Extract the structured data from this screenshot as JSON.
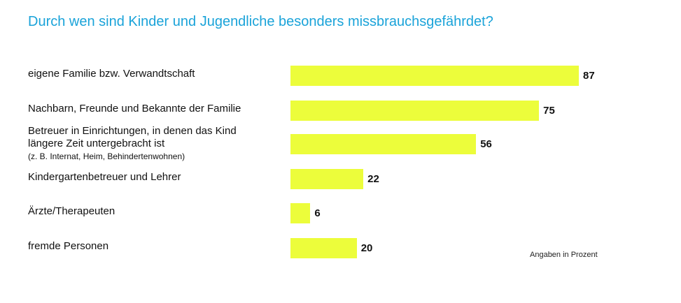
{
  "chart_data": {
    "type": "bar",
    "orientation": "horizontal",
    "title": "Durch wen sind Kinder und Jugendliche besonders missbrauchsgefährdet?",
    "note": "Angaben in Prozent",
    "categories": [
      {
        "label": "eigene Familie bzw. Verwandtschaft",
        "sublabel": ""
      },
      {
        "label": "Nachbarn, Freunde und Bekannte der Familie",
        "sublabel": ""
      },
      {
        "label": "Betreuer in Einrichtungen, in denen das Kind\nlängere Zeit untergebracht ist",
        "sublabel": "(z. B. Internat, Heim, Behindertenwohnen)"
      },
      {
        "label": "Kindergartenbetreuer und Lehrer",
        "sublabel": ""
      },
      {
        "label": "Ärzte/Therapeuten",
        "sublabel": ""
      },
      {
        "label": "fremde Personen",
        "sublabel": ""
      }
    ],
    "values": [
      87,
      75,
      56,
      22,
      6,
      20
    ],
    "xlim": [
      0,
      100
    ],
    "bar_color": "#ecfd3b",
    "title_color": "#1aa3d9"
  }
}
